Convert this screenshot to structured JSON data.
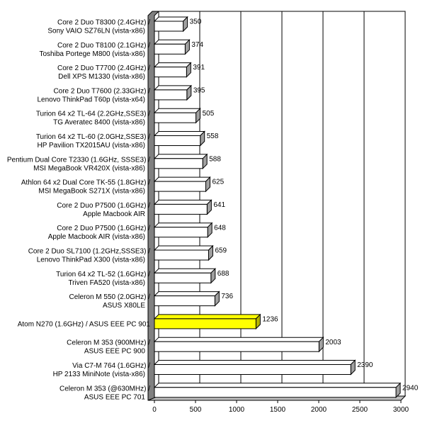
{
  "chart_data": {
    "type": "bar",
    "orientation": "horizontal",
    "style": "3d",
    "xlim": [
      0,
      3000
    ],
    "xticks": [
      0,
      500,
      1000,
      1500,
      2000,
      2500,
      3000
    ],
    "grid": true,
    "highlight_color": "#ffff00",
    "bar_color": "#ffffff",
    "categories": [
      [
        "Core 2 Duo T8300 (2.4GHz) /",
        "Sony VAIO SZ76LN (vista-x86)"
      ],
      [
        "Core 2 Duo T8100 (2.1GHz) /",
        "Toshiba Portege M800 (vista-x86)"
      ],
      [
        "Core 2 Duo T7700 (2.4GHz) /",
        "Dell XPS M1330 (vista-x86)"
      ],
      [
        "Core 2 Duo T7600 (2.33GHz) /",
        "Lenovo ThinkPad T60p (vista-x64)"
      ],
      [
        "Turion 64 x2 TL-64 (2.2GHz,SSE3) /",
        "TG Averatec 8400 (vista-x86)"
      ],
      [
        "Turion 64 x2 TL-60 (2.0GHz,SSE3) /",
        "HP Pavilion TX2015AU (vista-x86)"
      ],
      [
        "Pentium Dual Core T2330 (1.6GHz, SSSE3) /",
        "MSI MegaBook VR420X (vista-x86)"
      ],
      [
        "Athlon 64 x2 Dual Core TK-55 (1.8GHz) /",
        "MSI MegaBook S271X (vista-x86)"
      ],
      [
        "Core 2 Duo P7500 (1.6GHz) /",
        "Apple Macbook AIR"
      ],
      [
        "Core 2 Duo P7500 (1.6GHz) /",
        "Apple Macbook AIR (vista-x86)"
      ],
      [
        "Core 2 Duo SL7100 (1.2GHz,SSSE3) /",
        "Lenovo ThinkPad X300 (vista-x86)"
      ],
      [
        "Turion 64 x2 TL-52 (1.6GHz) /",
        "Triven FA520 (vista-x86)"
      ],
      [
        "Celeron M 550 (2.0GHz) /",
        "ASUS X80LE"
      ],
      [
        "Atom N270 (1.6GHz) / ASUS EEE PC 901"
      ],
      [
        "Celeron M 353 (900MHz) /",
        "ASUS EEE PC 900"
      ],
      [
        "Via C7-M 764 (1.6GHz) /",
        "HP 2133 MiniNote (vista-x86)"
      ],
      [
        "Celeron M 353 (@630MHz) /",
        "ASUS EEE PC 701"
      ]
    ],
    "values": [
      350,
      374,
      391,
      395,
      505,
      558,
      588,
      625,
      641,
      648,
      659,
      688,
      736,
      1236,
      2003,
      2390,
      2940
    ],
    "highlight_index": 13
  }
}
